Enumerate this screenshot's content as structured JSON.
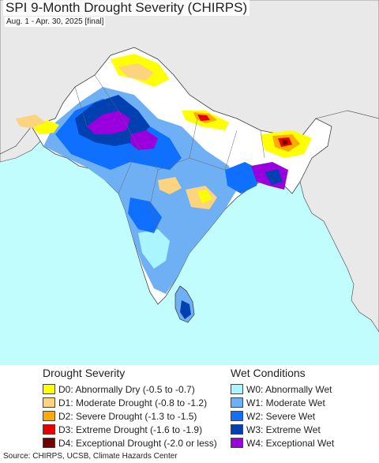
{
  "title": "SPI 9-Month Drought Severity (CHIRPS)",
  "subtitle": "Aug. 1 - Apr. 30, 2025 [final]",
  "colors": {
    "ocean": "#c1fdfd",
    "land_outside": "#e9e9e9",
    "land_normal": "#ffffff",
    "border": "#444444"
  },
  "legend": {
    "drought": {
      "heading": "Drought Severity",
      "items": [
        {
          "label": "D0: Abnormally Dry (-0.5 to -0.7)",
          "color": "#ffff00"
        },
        {
          "label": "D1: Moderate Drought (-0.8 to -1.2)",
          "color": "#fcd37f"
        },
        {
          "label": "D2: Severe Drought (-1.3 to -1.5)",
          "color": "#ffaa00"
        },
        {
          "label": "D3: Extreme Drought (-1.6 to -1.9)",
          "color": "#e60000"
        },
        {
          "label": "D4: Exceptional Drought (-2.0 or less)",
          "color": "#730000"
        }
      ]
    },
    "wet": {
      "heading": "Wet Conditions",
      "items": [
        {
          "label": "W0: Abnormally Wet",
          "color": "#aaf5ff"
        },
        {
          "label": "W1: Moderate Wet",
          "color": "#6fb0f5"
        },
        {
          "label": "W2: Severe Wet",
          "color": "#0f6fff"
        },
        {
          "label": "W3: Extreme Wet",
          "color": "#0040b0"
        },
        {
          "label": "W4: Exceptional Wet",
          "color": "#9900dd"
        }
      ]
    }
  },
  "source": "Source: CHIRPS, UCSB, Climate Hazards Center"
}
